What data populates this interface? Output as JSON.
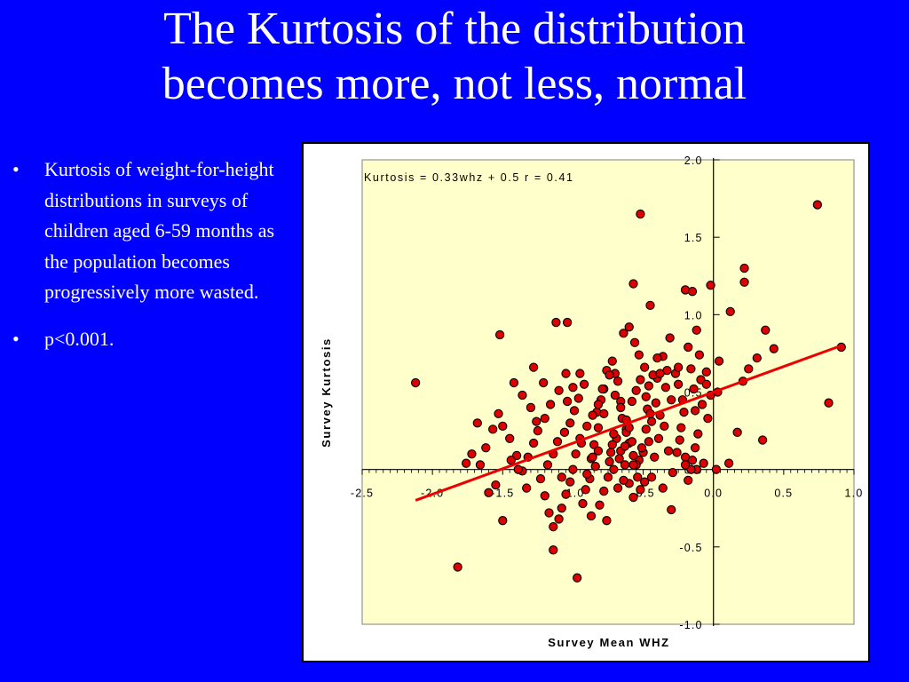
{
  "slide": {
    "title_line1": "The Kurtosis of the distribution",
    "title_line2": "becomes more, not less, normal",
    "bullets": [
      "Kurtosis of weight-for-height distributions in surveys of children aged 6-59 months as the population becomes progressively more wasted.",
      "p<0.001."
    ]
  },
  "colors": {
    "background": "#0000FF",
    "plot_area": "#FFFFCC",
    "point_fill": "#DD0000",
    "trend_line": "#EE0000"
  },
  "chart_data": {
    "type": "scatter",
    "title": "",
    "xlabel": "Survey Mean WHZ",
    "ylabel": "Survey Kurtosis",
    "annotation": "Kurtosis = 0.33whz + 0.5   r = 0.41",
    "xlim": [
      -2.5,
      1.0
    ],
    "ylim": [
      -1.0,
      2.0
    ],
    "xticks": [
      "-2.5",
      "-2.0",
      "-1.5",
      "-1.0",
      "-0.5",
      "0.0",
      "0.5",
      "1.0"
    ],
    "yticks": [
      "2.0",
      "1.5",
      "1.0",
      "0.5",
      "0.0",
      "-0.5",
      "-1.0"
    ],
    "trendline": {
      "slope": 0.33,
      "intercept": 0.5,
      "x_range": [
        -2.12,
        0.9
      ]
    },
    "grid": false,
    "points": [
      [
        -2.12,
        0.56
      ],
      [
        -1.52,
        0.87
      ],
      [
        -1.82,
        -0.63
      ],
      [
        -1.14,
        -0.52
      ],
      [
        -0.97,
        -0.7
      ],
      [
        -0.52,
        1.65
      ],
      [
        0.74,
        1.71
      ],
      [
        0.22,
        1.3
      ],
      [
        0.22,
        1.21
      ],
      [
        0.91,
        0.79
      ],
      [
        0.82,
        0.43
      ],
      [
        0.12,
        1.02
      ],
      [
        0.37,
        0.9
      ],
      [
        0.43,
        0.78
      ],
      [
        0.35,
        0.19
      ],
      [
        0.21,
        0.57
      ],
      [
        0.25,
        0.65
      ],
      [
        0.31,
        0.72
      ],
      [
        0.17,
        0.24
      ],
      [
        0.11,
        0.04
      ],
      [
        -0.02,
        1.19
      ],
      [
        -0.2,
        1.16
      ],
      [
        -0.15,
        1.15
      ],
      [
        -0.45,
        1.06
      ],
      [
        -0.57,
        1.2
      ],
      [
        -1.12,
        0.95
      ],
      [
        -1.04,
        0.95
      ],
      [
        -0.04,
        0.33
      ],
      [
        0.04,
        0.7
      ],
      [
        -0.05,
        0.63
      ],
      [
        -0.09,
        0.58
      ],
      [
        -0.02,
        0.48
      ],
      [
        -0.08,
        0.42
      ],
      [
        -0.16,
        0.65
      ],
      [
        -0.14,
        0.52
      ],
      [
        -0.13,
        0.38
      ],
      [
        -0.11,
        0.23
      ],
      [
        -0.13,
        0.14
      ],
      [
        -0.07,
        0.04
      ],
      [
        -0.12,
        0.0
      ],
      [
        -0.15,
        0.06
      ],
      [
        -0.2,
        0.08
      ],
      [
        -0.24,
        0.19
      ],
      [
        -0.21,
        0.37
      ],
      [
        -0.25,
        0.55
      ],
      [
        -0.27,
        0.62
      ],
      [
        -0.33,
        0.64
      ],
      [
        -0.36,
        0.73
      ],
      [
        -0.31,
        0.85
      ],
      [
        -0.4,
        0.59
      ],
      [
        -0.43,
        0.61
      ],
      [
        -0.46,
        0.54
      ],
      [
        -0.48,
        0.47
      ],
      [
        -0.47,
        0.39
      ],
      [
        -0.45,
        0.36
      ],
      [
        -0.48,
        0.26
      ],
      [
        -0.46,
        0.18
      ],
      [
        -0.5,
        0.11
      ],
      [
        -0.53,
        0.06
      ],
      [
        -0.57,
        0.09
      ],
      [
        -0.6,
        0.17
      ],
      [
        -0.62,
        0.26
      ],
      [
        -0.65,
        0.33
      ],
      [
        -0.66,
        0.44
      ],
      [
        -0.68,
        0.57
      ],
      [
        -0.7,
        0.62
      ],
      [
        -0.72,
        0.7
      ],
      [
        -0.76,
        0.64
      ],
      [
        -0.78,
        0.52
      ],
      [
        -0.8,
        0.45
      ],
      [
        -0.83,
        0.37
      ],
      [
        -0.82,
        0.27
      ],
      [
        -0.85,
        0.16
      ],
      [
        -0.87,
        0.07
      ],
      [
        -0.84,
        0.02
      ],
      [
        -0.88,
        -0.06
      ],
      [
        -0.91,
        -0.13
      ],
      [
        -0.93,
        -0.22
      ],
      [
        -0.87,
        -0.3
      ],
      [
        -0.81,
        -0.23
      ],
      [
        -0.78,
        -0.14
      ],
      [
        -0.75,
        -0.05
      ],
      [
        -0.71,
        0.0
      ],
      [
        -0.73,
        0.11
      ],
      [
        -0.69,
        0.2
      ],
      [
        -0.66,
        0.12
      ],
      [
        -0.63,
        0.03
      ],
      [
        -0.6,
        -0.09
      ],
      [
        -0.57,
        -0.18
      ],
      [
        -0.52,
        -0.13
      ],
      [
        -0.49,
        -0.08
      ],
      [
        -0.55,
        0.03
      ],
      [
        -0.58,
        0.18
      ],
      [
        -0.62,
        0.24
      ],
      [
        -0.95,
        0.2
      ],
      [
        -0.98,
        0.1
      ],
      [
        -1.0,
        0.0
      ],
      [
        -1.02,
        -0.08
      ],
      [
        -1.05,
        -0.16
      ],
      [
        -1.08,
        -0.25
      ],
      [
        -1.1,
        -0.32
      ],
      [
        -1.14,
        -0.37
      ],
      [
        -1.17,
        -0.28
      ],
      [
        -1.2,
        -0.17
      ],
      [
        -1.23,
        -0.06
      ],
      [
        -1.18,
        0.03
      ],
      [
        -1.14,
        0.1
      ],
      [
        -1.11,
        0.18
      ],
      [
        -1.06,
        0.24
      ],
      [
        -1.02,
        0.3
      ],
      [
        -0.99,
        0.38
      ],
      [
        -0.96,
        0.46
      ],
      [
        -1.0,
        0.53
      ],
      [
        -1.05,
        0.62
      ],
      [
        -1.1,
        0.51
      ],
      [
        -1.16,
        0.42
      ],
      [
        -1.2,
        0.33
      ],
      [
        -1.25,
        0.25
      ],
      [
        -1.28,
        0.17
      ],
      [
        -1.32,
        0.08
      ],
      [
        -1.36,
        -0.01
      ],
      [
        -1.4,
        0.09
      ],
      [
        -1.45,
        0.2
      ],
      [
        -1.5,
        0.28
      ],
      [
        -1.53,
        0.36
      ],
      [
        -1.57,
        0.26
      ],
      [
        -1.62,
        0.14
      ],
      [
        -1.68,
        0.3
      ],
      [
        -1.72,
        0.1
      ],
      [
        -1.76,
        0.04
      ],
      [
        -1.55,
        -0.1
      ],
      [
        -1.5,
        -0.33
      ],
      [
        -1.42,
        0.56
      ],
      [
        -1.36,
        0.48
      ],
      [
        -1.3,
        0.4
      ],
      [
        -1.26,
        0.31
      ],
      [
        -0.9,
        0.28
      ],
      [
        -0.86,
        0.35
      ],
      [
        -0.82,
        0.42
      ],
      [
        -0.79,
        0.52
      ],
      [
        -0.74,
        0.61
      ],
      [
        -0.7,
        0.48
      ],
      [
        -0.66,
        0.4
      ],
      [
        -0.62,
        0.32
      ],
      [
        -0.58,
        0.44
      ],
      [
        -0.55,
        0.51
      ],
      [
        -0.52,
        0.58
      ],
      [
        -0.49,
        0.66
      ],
      [
        -0.53,
        0.74
      ],
      [
        -0.56,
        0.82
      ],
      [
        -0.6,
        0.92
      ],
      [
        -0.64,
        0.88
      ],
      [
        -0.38,
        0.35
      ],
      [
        -0.35,
        0.28
      ],
      [
        -0.32,
        0.12
      ],
      [
        -0.29,
        -0.02
      ],
      [
        -0.26,
        0.11
      ],
      [
        -0.23,
        0.27
      ],
      [
        -0.3,
        0.45
      ],
      [
        -0.34,
        0.53
      ],
      [
        -0.39,
        0.2
      ],
      [
        -0.42,
        0.08
      ],
      [
        -0.44,
        -0.05
      ],
      [
        -0.36,
        -0.12
      ],
      [
        -0.3,
        -0.26
      ],
      [
        -0.18,
        -0.07
      ],
      [
        -0.16,
        0.0
      ],
      [
        -0.12,
        0.9
      ],
      [
        -0.18,
        0.79
      ],
      [
        -0.1,
        0.74
      ],
      [
        -0.05,
        0.55
      ],
      [
        0.03,
        0.5
      ],
      [
        -1.28,
        0.66
      ],
      [
        -0.95,
        0.62
      ],
      [
        -0.92,
        0.55
      ],
      [
        -1.08,
        -0.05
      ],
      [
        -1.33,
        -0.12
      ],
      [
        -1.39,
        0.0
      ],
      [
        -1.44,
        0.06
      ],
      [
        -1.6,
        -0.15
      ],
      [
        -1.66,
        0.03
      ],
      [
        -0.76,
        -0.33
      ],
      [
        -0.74,
        0.05
      ],
      [
        -0.68,
        -0.12
      ],
      [
        -0.64,
        -0.07
      ],
      [
        -0.54,
        -0.05
      ],
      [
        -0.51,
        0.14
      ],
      [
        -0.4,
        0.72
      ],
      [
        -0.78,
        0.36
      ],
      [
        -0.82,
        0.12
      ],
      [
        -0.86,
        0.08
      ],
      [
        -0.9,
        -0.03
      ],
      [
        -0.94,
        0.17
      ],
      [
        -1.21,
        0.56
      ],
      [
        -1.04,
        0.44
      ],
      [
        -0.72,
        0.16
      ],
      [
        -0.71,
        0.23
      ],
      [
        -0.67,
        0.07
      ],
      [
        -0.63,
        0.15
      ],
      [
        -0.57,
        0.03
      ],
      [
        -0.6,
        0.27
      ],
      [
        -0.44,
        0.31
      ],
      [
        -0.41,
        0.43
      ],
      [
        -0.38,
        0.62
      ],
      [
        -0.25,
        0.66
      ],
      [
        -0.22,
        0.45
      ],
      [
        0.02,
        0.0
      ],
      [
        -0.2,
        0.03
      ]
    ]
  }
}
